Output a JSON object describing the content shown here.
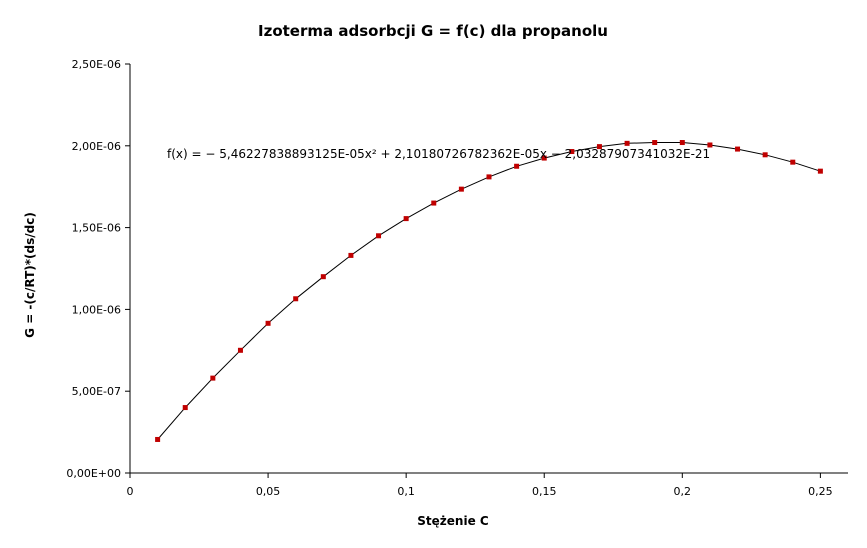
{
  "chart_data": {
    "type": "scatter",
    "title": "Izoterma adsorbcji G = f(c) dla propanolu",
    "xlabel": "Stężenie C",
    "ylabel": "G = -(c/RT)*(ds/dc)",
    "xlim": [
      0,
      0.26
    ],
    "ylim": [
      0,
      2.5e-06
    ],
    "x_ticks": [
      "0",
      "0,05",
      "0,1",
      "0,15",
      "0,2",
      "0,25"
    ],
    "y_ticks": [
      "0,00E+00",
      "5,00E-07",
      "1,00E-06",
      "1,50E-06",
      "2,00E-06",
      "2,50E-06"
    ],
    "trendline_equation": "f(x) = − 5,46227838893125E-05x² + 2,10180726782362E-05x − 2,03287907341032E-21",
    "trendline_coefficients": {
      "a": -5.46227838893125e-05,
      "b": 2.10180726782362e-05,
      "c": -2.03287907341032e-21
    },
    "grid": false,
    "marker_color": "#c00000",
    "line_color": "#000000",
    "series": [
      {
        "x": [
          0.01,
          0.02,
          0.03,
          0.04,
          0.05,
          0.06,
          0.07,
          0.08,
          0.09,
          0.1,
          0.11,
          0.12,
          0.13,
          0.14,
          0.15,
          0.16,
          0.17,
          0.18,
          0.19,
          0.2,
          0.21,
          0.22,
          0.23,
          0.24,
          0.25
        ],
        "y": [
          2.05e-07,
          4e-07,
          5.8e-07,
          7.5e-07,
          9.15e-07,
          1.065e-06,
          1.2e-06,
          1.33e-06,
          1.45e-06,
          1.555e-06,
          1.65e-06,
          1.735e-06,
          1.81e-06,
          1.875e-06,
          1.925e-06,
          1.965e-06,
          1.995e-06,
          2.015e-06,
          2.02e-06,
          2.02e-06,
          2.005e-06,
          1.98e-06,
          1.945e-06,
          1.9e-06,
          1.845e-06
        ]
      }
    ]
  }
}
